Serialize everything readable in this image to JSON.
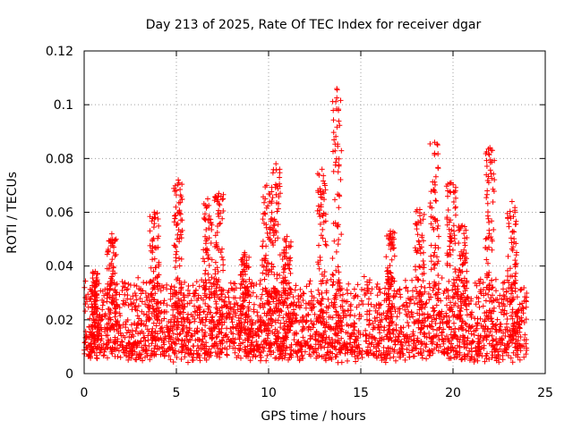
{
  "chart_data": {
    "type": "scatter",
    "title": "Day 213 of 2025, Rate Of TEC Index for receiver dgar",
    "xlabel": "GPS time / hours",
    "ylabel": "ROTI / TECUs",
    "xlim": [
      0,
      25
    ],
    "ylim": [
      0,
      0.12
    ],
    "xticks": [
      0,
      5,
      10,
      15,
      20,
      25
    ],
    "xtick_labels": [
      "0",
      "5",
      "10",
      "15",
      "20",
      "25"
    ],
    "yticks": [
      0,
      0.02,
      0.04,
      0.06,
      0.08,
      0.1,
      0.12
    ],
    "ytick_labels": [
      "0",
      "0.02",
      "0.04",
      "0.06",
      "0.08",
      "0.1",
      "0.12"
    ],
    "grid": true,
    "marker": "+",
    "marker_color": "#ff0000",
    "series": [
      {
        "name": "ROTI",
        "description": "dense scatter, roughly 0.005-0.03 baseline with spikes",
        "baseline_range": [
          0.003,
          0.03
        ],
        "x_range": [
          0,
          24
        ],
        "peaks": [
          {
            "x": 0.6,
            "y": 0.038
          },
          {
            "x": 1.5,
            "y": 0.052
          },
          {
            "x": 3.8,
            "y": 0.06
          },
          {
            "x": 5.1,
            "y": 0.072
          },
          {
            "x": 6.7,
            "y": 0.065
          },
          {
            "x": 7.3,
            "y": 0.067
          },
          {
            "x": 8.7,
            "y": 0.045
          },
          {
            "x": 9.9,
            "y": 0.07
          },
          {
            "x": 10.4,
            "y": 0.078
          },
          {
            "x": 11.0,
            "y": 0.051
          },
          {
            "x": 12.9,
            "y": 0.076
          },
          {
            "x": 13.7,
            "y": 0.106
          },
          {
            "x": 16.6,
            "y": 0.053
          },
          {
            "x": 18.2,
            "y": 0.061
          },
          {
            "x": 19.0,
            "y": 0.086
          },
          {
            "x": 19.9,
            "y": 0.071
          },
          {
            "x": 20.5,
            "y": 0.055
          },
          {
            "x": 22.0,
            "y": 0.084
          },
          {
            "x": 23.2,
            "y": 0.064
          }
        ]
      }
    ]
  }
}
